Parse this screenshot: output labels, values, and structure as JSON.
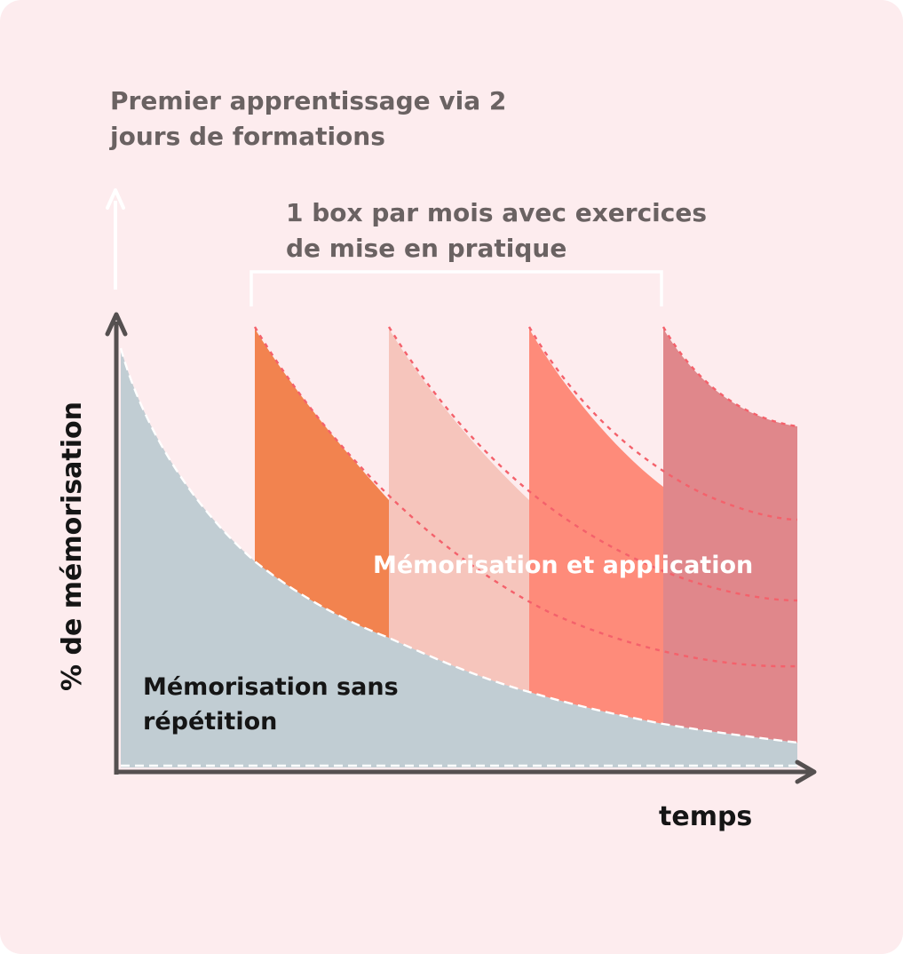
{
  "colors": {
    "background": "#fdecee",
    "axis": "#555050",
    "note_text": "#6a6262",
    "label_text": "#151515",
    "base_area": "#c1cdd3",
    "box_fills": [
      "#f2834f",
      "#f6c5bc",
      "#fe8b7a",
      "#e0878b"
    ],
    "dotted_curves": "#f4616b",
    "white": "#ffffff"
  },
  "annotations": {
    "first_learning": "Premier apprentissage via 2 jours de formations",
    "monthly_box": "1 box par mois avec exercices de mise en pratique"
  },
  "areas": {
    "with_application": "Mémorisation et application",
    "without_repetition": "Mémorisation sans répétition"
  },
  "axes": {
    "x_label": "temps",
    "y_label": "% de mémorisation"
  },
  "icons": {
    "y_axis_arrow": "arrow-up",
    "x_axis_arrow": "arrow-right",
    "first_learning_arrow": "arrow-up"
  }
}
